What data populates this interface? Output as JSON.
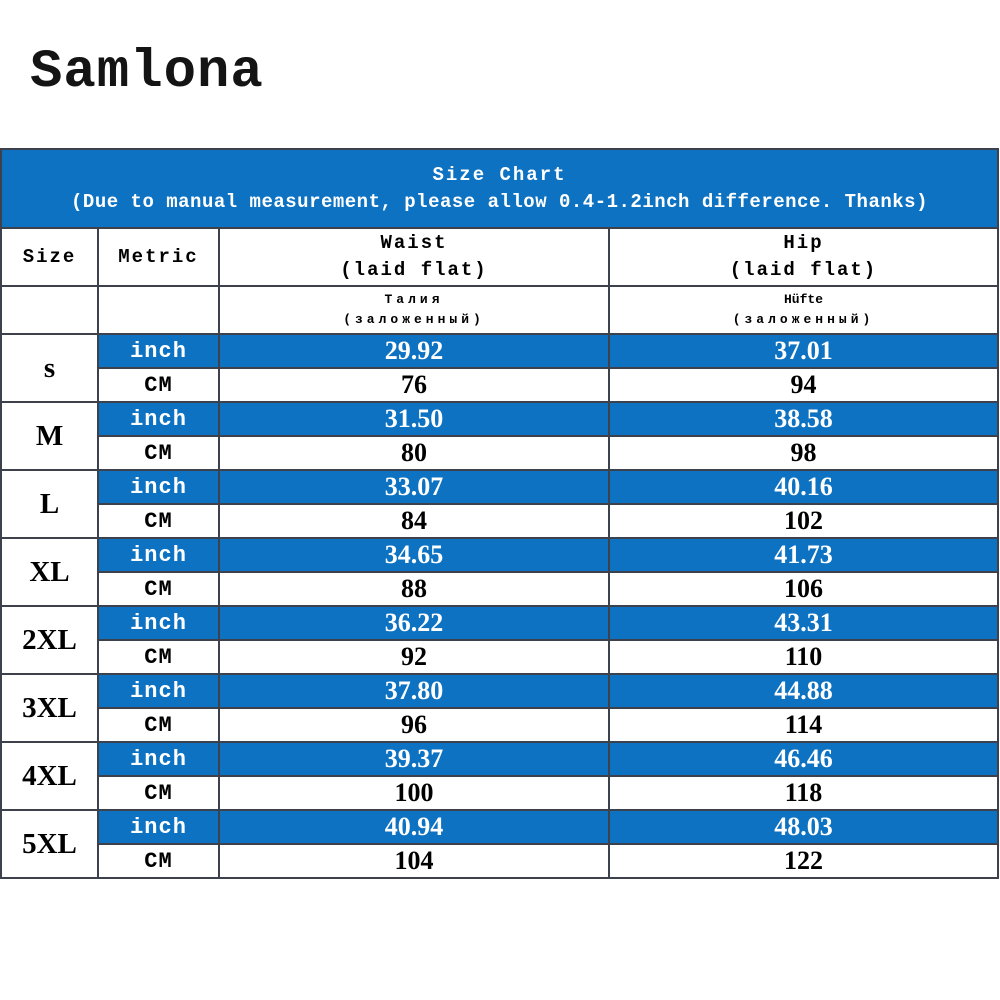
{
  "brand": "Samlona",
  "banner": {
    "title": "Size Chart",
    "subtitle": "(Due to manual measurement, please allow 0.4-1.2inch difference. Thanks)"
  },
  "table_headers": {
    "size": "Size",
    "metric": "Metric",
    "waist": {
      "line1": "Waist",
      "line2": "(laid flat)",
      "alt_line1": "Талия",
      "alt_line2": "(заложенный)"
    },
    "hip": {
      "line1": "Hip",
      "line2": "(laid flat)",
      "alt_line1": "Hüfte",
      "alt_line2": "(заложенный)"
    }
  },
  "units": {
    "inch_label": "inch",
    "cm_label": "CM"
  },
  "sizes": [
    {
      "size": "s",
      "waist_inch": "29.92",
      "hip_inch": "37.01",
      "waist_cm": "76",
      "hip_cm": "94"
    },
    {
      "size": "M",
      "waist_inch": "31.50",
      "hip_inch": "38.58",
      "waist_cm": "80",
      "hip_cm": "98"
    },
    {
      "size": "L",
      "waist_inch": "33.07",
      "hip_inch": "40.16",
      "waist_cm": "84",
      "hip_cm": "102"
    },
    {
      "size": "XL",
      "waist_inch": "34.65",
      "hip_inch": "41.73",
      "waist_cm": "88",
      "hip_cm": "106"
    },
    {
      "size": "2XL",
      "waist_inch": "36.22",
      "hip_inch": "43.31",
      "waist_cm": "92",
      "hip_cm": "110"
    },
    {
      "size": "3XL",
      "waist_inch": "37.80",
      "hip_inch": "44.88",
      "waist_cm": "96",
      "hip_cm": "114"
    },
    {
      "size": "4XL",
      "waist_inch": "39.37",
      "hip_inch": "46.46",
      "waist_cm": "100",
      "hip_cm": "118"
    },
    {
      "size": "5XL",
      "waist_inch": "40.94",
      "hip_inch": "48.03",
      "waist_cm": "104",
      "hip_cm": "122"
    }
  ],
  "colors": {
    "accent_blue": "#0d72c2",
    "border": "#3c414b",
    "text_on_blue": "#ffffff",
    "text_dark": "#000000"
  },
  "chart_data": {
    "type": "table",
    "title": "Size Chart",
    "subtitle": "(Due to manual measurement, please allow 0.4-1.2inch difference. Thanks)",
    "columns": [
      "Size",
      "Metric",
      "Waist (laid flat) / Талия (заложенный)",
      "Hip (laid flat) / Hüfte (заложенный)"
    ],
    "rows": [
      [
        "s",
        "inch",
        29.92,
        37.01
      ],
      [
        "s",
        "CM",
        76,
        94
      ],
      [
        "M",
        "inch",
        31.5,
        38.58
      ],
      [
        "M",
        "CM",
        80,
        98
      ],
      [
        "L",
        "inch",
        33.07,
        40.16
      ],
      [
        "L",
        "CM",
        84,
        102
      ],
      [
        "XL",
        "inch",
        34.65,
        41.73
      ],
      [
        "XL",
        "CM",
        88,
        106
      ],
      [
        "2XL",
        "inch",
        36.22,
        43.31
      ],
      [
        "2XL",
        "CM",
        92,
        110
      ],
      [
        "3XL",
        "inch",
        37.8,
        44.88
      ],
      [
        "3XL",
        "CM",
        96,
        114
      ],
      [
        "4XL",
        "inch",
        39.37,
        46.46
      ],
      [
        "4XL",
        "CM",
        100,
        118
      ],
      [
        "5XL",
        "inch",
        40.94,
        48.03
      ],
      [
        "5XL",
        "CM",
        104,
        122
      ]
    ],
    "layout": {
      "unit_row_background": "#0d72c2",
      "grid": true
    }
  }
}
